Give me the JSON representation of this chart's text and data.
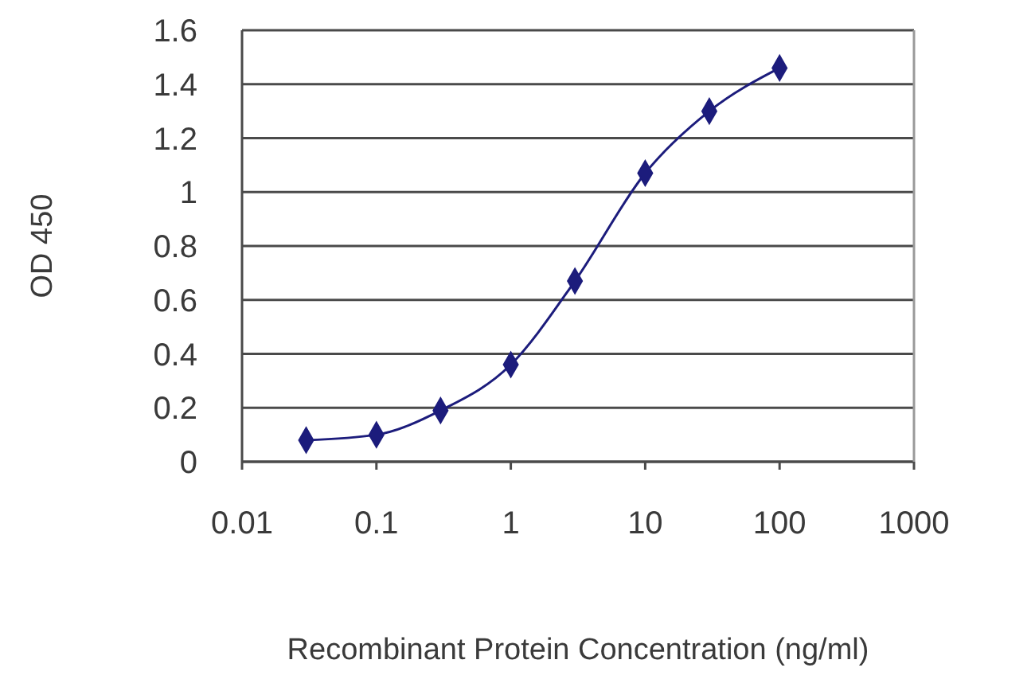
{
  "chart_data": {
    "type": "line",
    "xlabel": "Recombinant Protein Concentration (ng/ml)",
    "ylabel": "OD 450",
    "x": [
      0.03,
      0.1,
      0.3,
      1,
      3,
      10,
      30,
      100
    ],
    "values": [
      0.08,
      0.1,
      0.19,
      0.36,
      0.67,
      1.07,
      1.3,
      1.46
    ],
    "color": "#1c1c7c",
    "xlim": [
      0.01,
      1000
    ],
    "xticks": [
      0.01,
      0.1,
      1,
      10,
      100,
      1000
    ],
    "ylim": [
      0,
      1.6
    ],
    "yticks": [
      0,
      0.2,
      0.4,
      0.6,
      0.8,
      1,
      1.2,
      1.4,
      1.6
    ],
    "log": "x",
    "grid": "y",
    "marker": "diamond",
    "line_style": "solid"
  }
}
